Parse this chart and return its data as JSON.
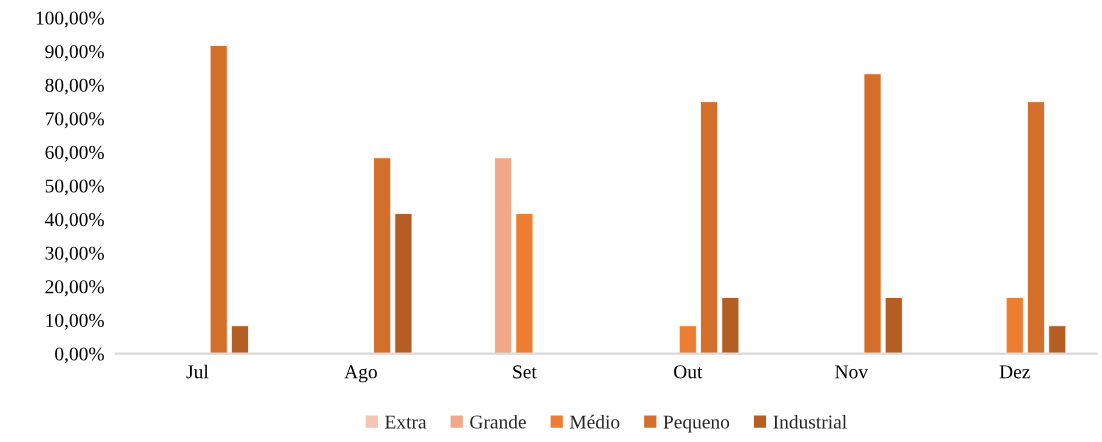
{
  "chart_data": {
    "type": "bar",
    "categories": [
      "Jul",
      "Ago",
      "Set",
      "Out",
      "Nov",
      "Dez"
    ],
    "series": [
      {
        "name": "Extra",
        "color": "#f4c5b0",
        "values": [
          null,
          null,
          null,
          null,
          null,
          null
        ]
      },
      {
        "name": "Grande",
        "color": "#f0a889",
        "values": [
          null,
          null,
          58.3,
          null,
          null,
          null
        ]
      },
      {
        "name": "Médio",
        "color": "#ed7d31",
        "values": [
          null,
          null,
          41.7,
          8.3,
          null,
          16.7
        ]
      },
      {
        "name": "Pequeno",
        "color": "#d46e2b",
        "values": [
          91.7,
          58.3,
          null,
          75.0,
          83.3,
          75.0
        ]
      },
      {
        "name": "Industrial",
        "color": "#b45e24",
        "values": [
          8.3,
          41.7,
          null,
          16.7,
          16.7,
          8.3
        ]
      }
    ],
    "ylim": [
      0,
      100
    ],
    "yticks": [
      {
        "value": 0,
        "label": "0,00%"
      },
      {
        "value": 10,
        "label": "10,00%"
      },
      {
        "value": 20,
        "label": "20,00%"
      },
      {
        "value": 30,
        "label": "30,00%"
      },
      {
        "value": 40,
        "label": "40,00%"
      },
      {
        "value": 50,
        "label": "50,00%"
      },
      {
        "value": 60,
        "label": "60,00%"
      },
      {
        "value": 70,
        "label": "70,00%"
      },
      {
        "value": 80,
        "label": "80,00%"
      },
      {
        "value": 90,
        "label": "90,00%"
      },
      {
        "value": 100,
        "label": "100,00%"
      }
    ],
    "grid": false,
    "legend": "bottom"
  }
}
